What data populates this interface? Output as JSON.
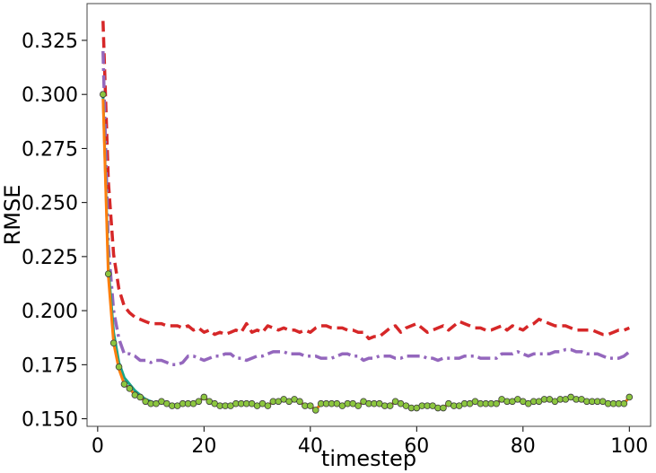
{
  "chart_data": {
    "type": "line",
    "title": "",
    "xlabel": "timestep",
    "ylabel": "RMSE",
    "xlim": [
      -2,
      104
    ],
    "ylim": [
      0.1465,
      0.342
    ],
    "xticks": [
      0,
      20,
      40,
      60,
      80,
      100
    ],
    "yticks": [
      0.15,
      0.175,
      0.2,
      0.225,
      0.25,
      0.275,
      0.3,
      0.325
    ],
    "xtick_labels": [
      "0",
      "20",
      "40",
      "60",
      "80",
      "100"
    ],
    "ytick_labels": [
      "0.150",
      "0.175",
      "0.200",
      "0.225",
      "0.250",
      "0.275",
      "0.300",
      "0.325"
    ],
    "grid": false,
    "legend": "none",
    "series": [
      {
        "style": "dashed",
        "color": "#d62728",
        "x": [
          1,
          2,
          3,
          4,
          5,
          6,
          7,
          8,
          9,
          10,
          11,
          12,
          13,
          14,
          15,
          16,
          17,
          18,
          19,
          20,
          21,
          22,
          23,
          24,
          25,
          26,
          27,
          28,
          29,
          30,
          31,
          32,
          33,
          34,
          35,
          36,
          37,
          38,
          39,
          40,
          41,
          42,
          43,
          44,
          45,
          46,
          47,
          48,
          49,
          50,
          51,
          52,
          53,
          54,
          55,
          56,
          57,
          58,
          59,
          60,
          61,
          62,
          63,
          64,
          65,
          66,
          67,
          68,
          69,
          70,
          71,
          72,
          73,
          74,
          75,
          76,
          77,
          78,
          79,
          80,
          81,
          82,
          83,
          84,
          85,
          86,
          87,
          88,
          89,
          90,
          91,
          92,
          93,
          94,
          95,
          96,
          97,
          98,
          99,
          100
        ],
        "y": [
          0.334,
          0.26,
          0.226,
          0.21,
          0.202,
          0.199,
          0.197,
          0.196,
          0.195,
          0.194,
          0.194,
          0.194,
          0.193,
          0.193,
          0.193,
          0.192,
          0.193,
          0.191,
          0.192,
          0.19,
          0.191,
          0.189,
          0.19,
          0.189,
          0.19,
          0.191,
          0.19,
          0.194,
          0.19,
          0.191,
          0.19,
          0.193,
          0.192,
          0.191,
          0.192,
          0.191,
          0.191,
          0.19,
          0.191,
          0.19,
          0.192,
          0.193,
          0.193,
          0.192,
          0.192,
          0.192,
          0.191,
          0.191,
          0.19,
          0.19,
          0.187,
          0.188,
          0.188,
          0.19,
          0.192,
          0.193,
          0.19,
          0.192,
          0.193,
          0.194,
          0.192,
          0.19,
          0.191,
          0.192,
          0.193,
          0.191,
          0.193,
          0.195,
          0.194,
          0.193,
          0.192,
          0.192,
          0.191,
          0.191,
          0.192,
          0.193,
          0.191,
          0.193,
          0.192,
          0.191,
          0.193,
          0.194,
          0.196,
          0.195,
          0.194,
          0.193,
          0.193,
          0.193,
          0.192,
          0.191,
          0.191,
          0.191,
          0.191,
          0.19,
          0.189,
          0.189,
          0.19,
          0.191,
          0.191,
          0.192
        ]
      },
      {
        "style": "dashdot",
        "color": "#9467bd",
        "x": [
          1,
          2,
          3,
          4,
          5,
          6,
          7,
          8,
          9,
          10,
          11,
          12,
          13,
          14,
          15,
          16,
          17,
          18,
          19,
          20,
          21,
          22,
          23,
          24,
          25,
          26,
          27,
          28,
          29,
          30,
          31,
          32,
          33,
          34,
          35,
          36,
          37,
          38,
          39,
          40,
          41,
          42,
          43,
          44,
          45,
          46,
          47,
          48,
          49,
          50,
          51,
          52,
          53,
          54,
          55,
          56,
          57,
          58,
          59,
          60,
          61,
          62,
          63,
          64,
          65,
          66,
          67,
          68,
          69,
          70,
          71,
          72,
          73,
          74,
          75,
          76,
          77,
          78,
          79,
          80,
          81,
          82,
          83,
          84,
          85,
          86,
          87,
          88,
          89,
          90,
          91,
          92,
          93,
          94,
          95,
          96,
          97,
          98,
          99,
          100
        ],
        "y": [
          0.32,
          0.23,
          0.2,
          0.187,
          0.18,
          0.18,
          0.179,
          0.177,
          0.177,
          0.176,
          0.177,
          0.177,
          0.176,
          0.175,
          0.175,
          0.176,
          0.179,
          0.179,
          0.178,
          0.177,
          0.178,
          0.179,
          0.179,
          0.18,
          0.18,
          0.178,
          0.178,
          0.177,
          0.178,
          0.179,
          0.179,
          0.18,
          0.181,
          0.181,
          0.181,
          0.18,
          0.18,
          0.18,
          0.179,
          0.179,
          0.179,
          0.178,
          0.178,
          0.178,
          0.179,
          0.18,
          0.18,
          0.179,
          0.179,
          0.177,
          0.178,
          0.178,
          0.179,
          0.179,
          0.179,
          0.178,
          0.178,
          0.179,
          0.179,
          0.179,
          0.179,
          0.178,
          0.178,
          0.177,
          0.178,
          0.178,
          0.178,
          0.178,
          0.179,
          0.179,
          0.179,
          0.178,
          0.178,
          0.178,
          0.178,
          0.18,
          0.18,
          0.18,
          0.181,
          0.18,
          0.179,
          0.18,
          0.18,
          0.18,
          0.18,
          0.181,
          0.181,
          0.182,
          0.182,
          0.181,
          0.181,
          0.18,
          0.18,
          0.18,
          0.179,
          0.178,
          0.178,
          0.178,
          0.179,
          0.181
        ]
      },
      {
        "style": "solid",
        "color": "#17a589",
        "x": [
          1,
          2,
          3,
          4,
          5,
          6,
          7,
          8,
          9,
          10,
          11,
          12,
          13,
          14,
          15,
          16,
          17,
          18,
          19,
          20,
          21,
          22,
          23,
          24,
          25,
          26,
          27,
          28,
          29,
          30,
          31,
          32,
          33,
          34,
          35,
          36,
          37,
          38,
          39,
          40,
          41,
          42,
          43,
          44,
          45,
          46,
          47,
          48,
          49,
          50,
          51,
          52,
          53,
          54,
          55,
          56,
          57,
          58,
          59,
          60,
          61,
          62,
          63,
          64,
          65,
          66,
          67,
          68,
          69,
          70,
          71,
          72,
          73,
          74,
          75,
          76,
          77,
          78,
          79,
          80,
          81,
          82,
          83,
          84,
          85,
          86,
          87,
          88,
          89,
          90,
          91,
          92,
          93,
          94,
          95,
          96,
          97,
          98,
          99,
          100
        ],
        "y": [
          0.3,
          0.22,
          0.19,
          0.176,
          0.169,
          0.166,
          0.163,
          0.161,
          0.159,
          0.158,
          0.157,
          0.158,
          0.157,
          0.156,
          0.156,
          0.157,
          0.157,
          0.157,
          0.158,
          0.16,
          0.158,
          0.157,
          0.156,
          0.156,
          0.156,
          0.157,
          0.157,
          0.157,
          0.157,
          0.156,
          0.157,
          0.156,
          0.158,
          0.158,
          0.159,
          0.158,
          0.159,
          0.158,
          0.156,
          0.156,
          0.154,
          0.157,
          0.157,
          0.157,
          0.157,
          0.156,
          0.157,
          0.157,
          0.156,
          0.158,
          0.157,
          0.157,
          0.157,
          0.156,
          0.156,
          0.158,
          0.157,
          0.156,
          0.155,
          0.155,
          0.156,
          0.156,
          0.156,
          0.155,
          0.155,
          0.157,
          0.156,
          0.156,
          0.157,
          0.157,
          0.158,
          0.157,
          0.157,
          0.157,
          0.157,
          0.159,
          0.158,
          0.158,
          0.159,
          0.158,
          0.157,
          0.158,
          0.158,
          0.159,
          0.159,
          0.158,
          0.159,
          0.159,
          0.16,
          0.159,
          0.159,
          0.158,
          0.158,
          0.158,
          0.158,
          0.157,
          0.157,
          0.157,
          0.157,
          0.16
        ]
      },
      {
        "style": "solid",
        "color": "#ff7f0e",
        "x": [
          1,
          2,
          3,
          4,
          5,
          6,
          7,
          8,
          9,
          10,
          11,
          12,
          13,
          14,
          15,
          16,
          17,
          18,
          19,
          20,
          21,
          22,
          23,
          24,
          25,
          26,
          27,
          28,
          29,
          30,
          31,
          32,
          33,
          34,
          35,
          36,
          37,
          38,
          39,
          40,
          41,
          42,
          43,
          44,
          45,
          46,
          47,
          48,
          49,
          50,
          51,
          52,
          53,
          54,
          55,
          56,
          57,
          58,
          59,
          60,
          61,
          62,
          63,
          64,
          65,
          66,
          67,
          68,
          69,
          70,
          71,
          72,
          73,
          74,
          75,
          76,
          77,
          78,
          79,
          80,
          81,
          82,
          83,
          84,
          85,
          86,
          87,
          88,
          89,
          90,
          91,
          92,
          93,
          94,
          95,
          96,
          97,
          98,
          99,
          100
        ],
        "y": [
          0.298,
          0.216,
          0.185,
          0.173,
          0.166,
          0.164,
          0.161,
          0.16,
          0.158,
          0.157,
          0.157,
          0.158,
          0.157,
          0.156,
          0.156,
          0.157,
          0.157,
          0.157,
          0.158,
          0.16,
          0.158,
          0.157,
          0.156,
          0.156,
          0.156,
          0.157,
          0.157,
          0.157,
          0.157,
          0.156,
          0.157,
          0.156,
          0.158,
          0.158,
          0.159,
          0.158,
          0.159,
          0.158,
          0.156,
          0.156,
          0.154,
          0.157,
          0.157,
          0.157,
          0.157,
          0.156,
          0.157,
          0.157,
          0.156,
          0.158,
          0.157,
          0.157,
          0.157,
          0.156,
          0.156,
          0.158,
          0.157,
          0.156,
          0.155,
          0.155,
          0.156,
          0.156,
          0.156,
          0.155,
          0.155,
          0.157,
          0.156,
          0.156,
          0.157,
          0.157,
          0.158,
          0.157,
          0.157,
          0.157,
          0.157,
          0.159,
          0.158,
          0.158,
          0.159,
          0.158,
          0.157,
          0.158,
          0.158,
          0.159,
          0.159,
          0.158,
          0.159,
          0.159,
          0.16,
          0.159,
          0.159,
          0.158,
          0.158,
          0.158,
          0.158,
          0.157,
          0.157,
          0.157,
          0.157,
          0.16
        ]
      },
      {
        "style": "markers",
        "color": "#8cc63f",
        "x": [
          1,
          2,
          3,
          4,
          5,
          6,
          7,
          8,
          9,
          10,
          11,
          12,
          13,
          14,
          15,
          16,
          17,
          18,
          19,
          20,
          21,
          22,
          23,
          24,
          25,
          26,
          27,
          28,
          29,
          30,
          31,
          32,
          33,
          34,
          35,
          36,
          37,
          38,
          39,
          40,
          41,
          42,
          43,
          44,
          45,
          46,
          47,
          48,
          49,
          50,
          51,
          52,
          53,
          54,
          55,
          56,
          57,
          58,
          59,
          60,
          61,
          62,
          63,
          64,
          65,
          66,
          67,
          68,
          69,
          70,
          71,
          72,
          73,
          74,
          75,
          76,
          77,
          78,
          79,
          80,
          81,
          82,
          83,
          84,
          85,
          86,
          87,
          88,
          89,
          90,
          91,
          92,
          93,
          94,
          95,
          96,
          97,
          98,
          99,
          100
        ],
        "y": [
          0.3,
          0.217,
          0.185,
          0.174,
          0.166,
          0.164,
          0.161,
          0.16,
          0.158,
          0.157,
          0.157,
          0.158,
          0.157,
          0.156,
          0.156,
          0.157,
          0.157,
          0.157,
          0.158,
          0.16,
          0.158,
          0.157,
          0.156,
          0.156,
          0.156,
          0.157,
          0.157,
          0.157,
          0.157,
          0.156,
          0.157,
          0.156,
          0.158,
          0.158,
          0.159,
          0.158,
          0.159,
          0.158,
          0.156,
          0.156,
          0.154,
          0.157,
          0.157,
          0.157,
          0.157,
          0.156,
          0.157,
          0.157,
          0.156,
          0.158,
          0.157,
          0.157,
          0.157,
          0.156,
          0.156,
          0.158,
          0.157,
          0.156,
          0.155,
          0.155,
          0.156,
          0.156,
          0.156,
          0.155,
          0.155,
          0.157,
          0.156,
          0.156,
          0.157,
          0.157,
          0.158,
          0.157,
          0.157,
          0.157,
          0.157,
          0.159,
          0.158,
          0.158,
          0.159,
          0.158,
          0.157,
          0.158,
          0.158,
          0.159,
          0.159,
          0.158,
          0.159,
          0.159,
          0.16,
          0.159,
          0.159,
          0.158,
          0.158,
          0.158,
          0.158,
          0.157,
          0.157,
          0.157,
          0.157,
          0.16
        ]
      }
    ]
  }
}
